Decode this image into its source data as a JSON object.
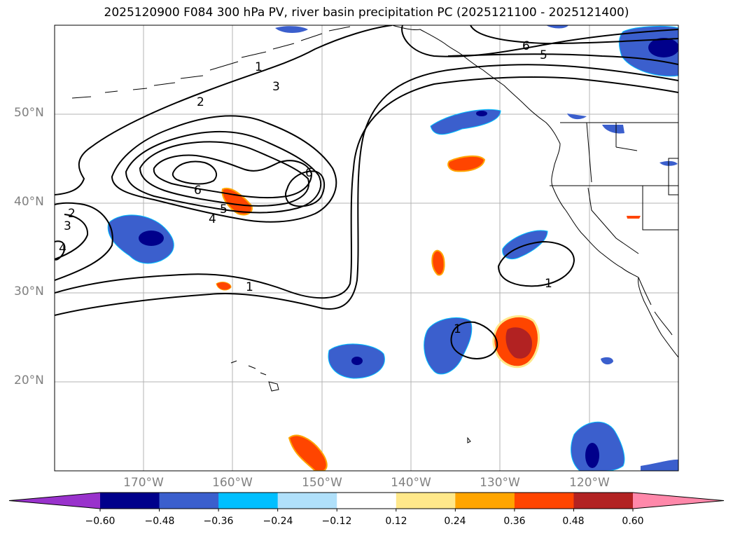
{
  "figure": {
    "title": "2025120900 F084 300 hPa PV, river basin precipitation PC (2025121100 - 2025121400)"
  },
  "axes": {
    "lat_labels": [
      "20°N",
      "30°N",
      "40°N",
      "50°N"
    ],
    "lon_labels": [
      "170°W",
      "160°W",
      "150°W",
      "140°W",
      "130°W",
      "120°W"
    ]
  },
  "contour_labels": {
    "a": "1",
    "b": "3",
    "c": "2",
    "d": "6",
    "e": "6",
    "f": "5",
    "g": "4",
    "h": "2",
    "i": "3",
    "j": "4",
    "k": "1",
    "l": "6",
    "m": "5",
    "n": "1",
    "o": "1"
  },
  "colorbar": {
    "colors": [
      "#9932cc",
      "#00008b",
      "#3b5fcd",
      "#00bfff",
      "#b0e0fa",
      "#ffffff",
      "#ffe88a",
      "#ffa500",
      "#ff4500",
      "#b22222",
      "#ff88aa"
    ],
    "ticks": [
      "−0.60",
      "−0.48",
      "−0.36",
      "−0.24",
      "−0.12",
      "0.12",
      "0.24",
      "0.36",
      "0.48",
      "0.60"
    ]
  }
}
